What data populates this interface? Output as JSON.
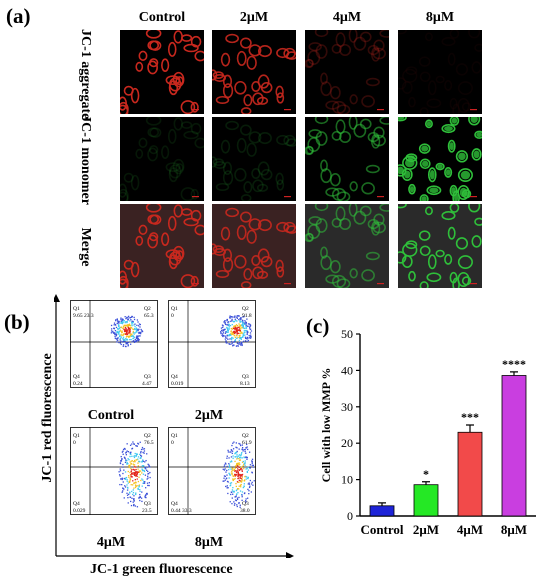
{
  "panel_a": {
    "letter": "(a)",
    "columns": [
      "Control",
      "2μM",
      "4μM",
      "8μM"
    ],
    "rows": [
      {
        "label": "JC-1 aggregate",
        "channel": "red"
      },
      {
        "label": "JC-1 monomer",
        "channel": "green"
      },
      {
        "label": "Merge",
        "channel": "merge"
      }
    ],
    "red_intensity": [
      1.0,
      0.9,
      0.25,
      0.05
    ],
    "green_intensity": [
      0.12,
      0.15,
      0.55,
      1.0
    ],
    "colors": {
      "red": "#c8281e",
      "green": "#2fbf3a",
      "background": "#000000"
    }
  },
  "panel_b": {
    "letter": "(b)",
    "y_axis_label": "JC-1 red fluorescence",
    "x_axis_label": "JC-1 green fluorescence",
    "plots": [
      {
        "label": "Control",
        "q1": "Q1",
        "q1v": "9.65",
        "q1v2": "23.3",
        "q2": "Q2",
        "q2v": "65.3",
        "q3": "Q3",
        "q3v": "4.47",
        "q4": "Q4",
        "q4v": "0.24"
      },
      {
        "label": "2μM",
        "q1": "Q1",
        "q1v": "0",
        "q1v2": "",
        "q2": "Q2",
        "q2v": "91.8",
        "q3": "Q3",
        "q3v": "8.13",
        "q4": "Q4",
        "q4v": "0.019"
      },
      {
        "label": "4μM",
        "q1": "Q1",
        "q1v": "0",
        "q1v2": "",
        "q2": "Q2",
        "q2v": "76.5",
        "q3": "Q3",
        "q3v": "23.5",
        "q4": "Q4",
        "q4v": "0.029"
      },
      {
        "label": "8μM",
        "q1": "Q1",
        "q1v": "0",
        "q1v2": "",
        "q2": "Q2",
        "q2v": "61.9",
        "q3": "Q3",
        "q3v": "38.0",
        "q4": "Q4",
        "q4v": "0.44",
        "q4v2": "33.3"
      }
    ]
  },
  "panel_c": {
    "letter": "(c)",
    "chart_data": {
      "type": "bar",
      "categories": [
        "Control",
        "2μM",
        "4μM",
        "8μM"
      ],
      "values": [
        2.8,
        8.6,
        23.0,
        38.6
      ],
      "errors": [
        0.8,
        0.8,
        2.0,
        1.0
      ],
      "significance": [
        "",
        "*",
        "***",
        "****"
      ],
      "colors": [
        "#1e24d8",
        "#25e825",
        "#f24a4a",
        "#c93ee0"
      ],
      "ylabel": "Cell with low MMP %",
      "ylim": [
        0,
        50
      ],
      "yticks": [
        0,
        10,
        20,
        30,
        40,
        50
      ]
    }
  }
}
